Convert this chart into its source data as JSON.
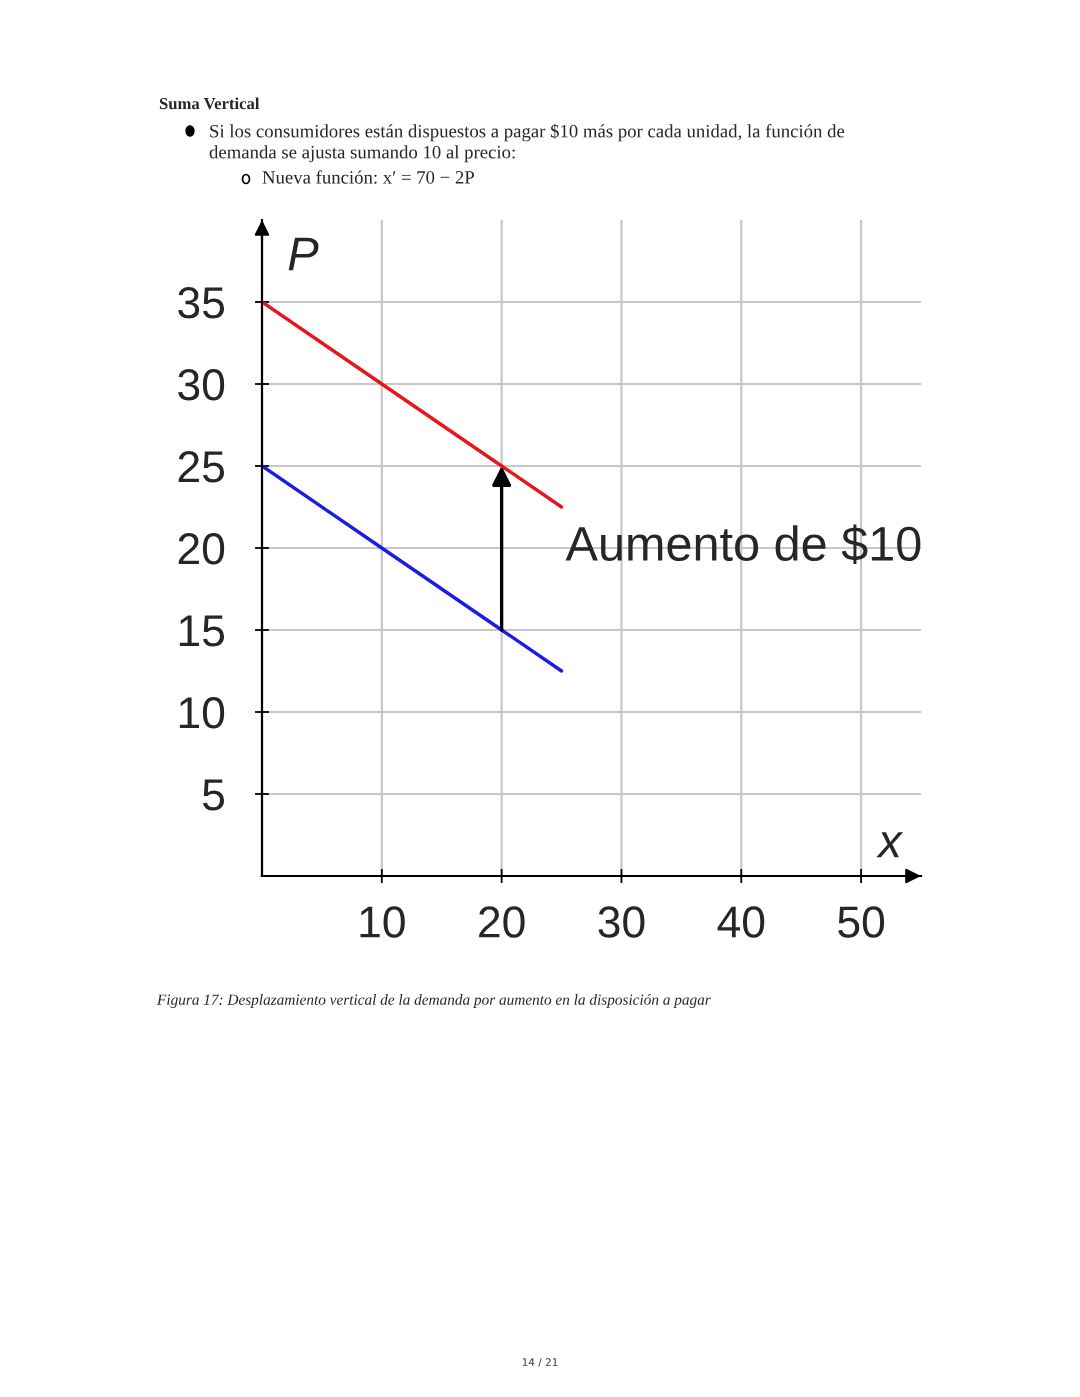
{
  "chart_data": {
    "type": "line",
    "title": "Suma Vertical",
    "subtitle": "Si los consumidores están dispuestos a pagar $10 más por cada unidad, la función de\ndemanda se ajusta sumando 10 al precio:",
    "xlabel": "x",
    "ylabel": "P",
    "series": [
      {
        "color": "#e8141e",
        "x": [
          0,
          10,
          20,
          25
        ],
        "values": [
          35,
          30,
          25,
          22.5
        ]
      },
      {
        "color": "#1c1ce6",
        "x": [
          0,
          10,
          20,
          25
        ],
        "values": [
          25,
          20,
          15,
          12.5
        ]
      }
    ],
    "xlim": [
      0,
      55
    ],
    "ylim": [
      0,
      40
    ],
    "xticks": [
      10,
      20,
      30,
      40,
      50
    ],
    "yticks": [
      5,
      10,
      15,
      20,
      25,
      30,
      35
    ],
    "grid": true,
    "annotations": [
      "Nueva función: x′ = 70 − 2P",
      {
        "text": "Aumento de $10",
        "x": 20,
        "y": 25
      },
      "Figura 17: Desplazamiento vertical de la demanda por aumento en la disposición a pagar",
      "14 / 21"
    ]
  }
}
